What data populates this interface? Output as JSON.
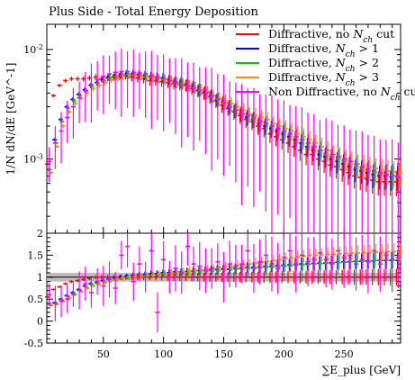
{
  "chart_data": [
    {
      "type": "scatter",
      "title": "Plus Side - Total Energy Deposition",
      "ylabel": "1/N dN/dE [GeV^-1]",
      "yscale": "log",
      "ylim": [
        0.00021,
        0.017
      ],
      "xlim": [
        3,
        297
      ],
      "ytick_labels": [
        "10^-3",
        "10^-2"
      ],
      "legend_position": "top-right",
      "grid": false,
      "x": [
        5,
        10,
        15,
        20,
        25,
        30,
        35,
        40,
        45,
        50,
        55,
        60,
        65,
        70,
        75,
        80,
        85,
        90,
        95,
        100,
        105,
        110,
        115,
        120,
        125,
        130,
        135,
        140,
        145,
        150,
        155,
        160,
        165,
        170,
        175,
        180,
        185,
        190,
        195,
        200,
        205,
        210,
        215,
        220,
        225,
        230,
        235,
        240,
        245,
        250,
        255,
        260,
        265,
        270,
        275,
        280,
        285,
        290,
        295
      ],
      "series": [
        {
          "name": "Diffractive, no N_ch cut",
          "color": "#ff0000",
          "offset": -1.5,
          "values": [
            0.0009,
            0.0038,
            0.0047,
            0.0052,
            0.0054,
            0.0054,
            0.0054,
            0.0055,
            0.0056,
            0.0054,
            0.0055,
            0.0056,
            0.0057,
            0.0058,
            0.0056,
            0.0055,
            0.0054,
            0.0052,
            0.0052,
            0.0051,
            0.005,
            0.0049,
            0.0048,
            0.0047,
            0.0044,
            0.0042,
            0.004,
            0.0037,
            0.0034,
            0.0031,
            0.0029,
            0.0027,
            0.0025,
            0.0023,
            0.0022,
            0.002,
            0.0019,
            0.0017,
            0.0016,
            0.0015,
            0.0014,
            0.0013,
            0.0012,
            0.0011,
            0.0011,
            0.001,
            0.00095,
            0.00088,
            0.00085,
            0.0008,
            0.00075,
            0.0007,
            0.00068,
            0.00066,
            0.00064,
            0.00062,
            0.00062,
            0.00062,
            0.00062
          ],
          "ratio": [
            0.55,
            0.72,
            0.78,
            0.85,
            0.9,
            0.92,
            0.95,
            0.97,
            1,
            1,
            1,
            1,
            1,
            1,
            1,
            1,
            1,
            1,
            1,
            1,
            1,
            1,
            1,
            1,
            1,
            1,
            1,
            1,
            1,
            1,
            1,
            1,
            1,
            1,
            1,
            1,
            1,
            1,
            1,
            1,
            1,
            1,
            1,
            1,
            1,
            1,
            1,
            1,
            1,
            1,
            1,
            1,
            1,
            1,
            1,
            1,
            1,
            1,
            1
          ]
        },
        {
          "name": "Diffractive, N_ch > 1",
          "color": "#0000ff",
          "offset": -0.5,
          "values": [
            0.0008,
            0.0015,
            0.0023,
            0.003,
            0.0035,
            0.0039,
            0.0043,
            0.0047,
            0.005,
            0.0053,
            0.0056,
            0.0058,
            0.0059,
            0.006,
            0.006,
            0.0059,
            0.0058,
            0.0057,
            0.0056,
            0.0055,
            0.0053,
            0.0051,
            0.005,
            0.0048,
            0.0046,
            0.0043,
            0.0041,
            0.0038,
            0.0035,
            0.0033,
            0.003,
            0.0028,
            0.0026,
            0.0024,
            0.0023,
            0.0021,
            0.002,
            0.0019,
            0.0018,
            0.0017,
            0.0016,
            0.0015,
            0.0014,
            0.0013,
            0.0012,
            0.0011,
            0.00105,
            0.001,
            0.00095,
            0.0009,
            0.00085,
            0.0008,
            0.00078,
            0.00075,
            0.00072,
            0.0007,
            0.0007,
            0.00069,
            0.00069
          ],
          "ratio": [
            0.4,
            0.42,
            0.5,
            0.58,
            0.65,
            0.72,
            0.8,
            0.85,
            0.88,
            0.92,
            0.95,
            0.98,
            1.0,
            1.02,
            1.04,
            1.05,
            1.06,
            1.08,
            1.08,
            1.1,
            1.1,
            1.12,
            1.12,
            1.13,
            1.14,
            1.15,
            1.15,
            1.16,
            1.17,
            1.18,
            1.18,
            1.2,
            1.2,
            1.22,
            1.22,
            1.23,
            1.24,
            1.25,
            1.26,
            1.27,
            1.28,
            1.29,
            1.3,
            1.3,
            1.31,
            1.32,
            1.32,
            1.33,
            1.34,
            1.35,
            1.35,
            1.36,
            1.36,
            1.37,
            1.37,
            1.38,
            1.38,
            1.38,
            1.38
          ]
        },
        {
          "name": "Diffractive, N_ch > 2",
          "color": "#00cc00",
          "offset": 0.5,
          "values": [
            0.0008,
            0.0014,
            0.0022,
            0.0029,
            0.0034,
            0.0038,
            0.0042,
            0.0046,
            0.0049,
            0.0052,
            0.0055,
            0.0057,
            0.0058,
            0.0059,
            0.0059,
            0.0058,
            0.0057,
            0.0056,
            0.0055,
            0.0054,
            0.0052,
            0.005,
            0.0049,
            0.0047,
            0.0045,
            0.0043,
            0.004,
            0.0037,
            0.0035,
            0.0032,
            0.003,
            0.0028,
            0.0026,
            0.0025,
            0.0023,
            0.0022,
            0.0021,
            0.002,
            0.0019,
            0.0018,
            0.0017,
            0.0016,
            0.0015,
            0.0014,
            0.0013,
            0.0012,
            0.0011,
            0.00105,
            0.001,
            0.00095,
            0.0009,
            0.00085,
            0.0008,
            0.00078,
            0.00075,
            0.00073,
            0.00072,
            0.00071,
            0.0007
          ],
          "ratio": [
            0.38,
            0.4,
            0.48,
            0.56,
            0.62,
            0.7,
            0.78,
            0.83,
            0.86,
            0.9,
            0.93,
            0.96,
            0.98,
            1.0,
            1.02,
            1.03,
            1.04,
            1.05,
            1.06,
            1.07,
            1.08,
            1.09,
            1.1,
            1.1,
            1.11,
            1.12,
            1.13,
            1.14,
            1.15,
            1.16,
            1.17,
            1.18,
            1.18,
            1.2,
            1.2,
            1.21,
            1.22,
            1.23,
            1.24,
            1.25,
            1.26,
            1.27,
            1.28,
            1.29,
            1.3,
            1.31,
            1.32,
            1.32,
            1.33,
            1.34,
            1.35,
            1.36,
            1.36,
            1.37,
            1.38,
            1.38,
            1.39,
            1.39,
            1.4
          ]
        },
        {
          "name": "Diffractive, N_ch > 3",
          "color": "#ff8c00",
          "offset": 1.5,
          "values": [
            0.00075,
            0.0013,
            0.002,
            0.0027,
            0.0032,
            0.0036,
            0.004,
            0.0044,
            0.0047,
            0.005,
            0.0053,
            0.0055,
            0.0057,
            0.0058,
            0.0058,
            0.0057,
            0.0056,
            0.0055,
            0.0054,
            0.0053,
            0.0052,
            0.005,
            0.0049,
            0.0047,
            0.0045,
            0.0043,
            0.0041,
            0.0038,
            0.0036,
            0.0034,
            0.0032,
            0.003,
            0.0028,
            0.0026,
            0.0025,
            0.0024,
            0.0023,
            0.0021,
            0.002,
            0.0019,
            0.0018,
            0.0017,
            0.0016,
            0.0015,
            0.0014,
            0.0013,
            0.0012,
            0.0011,
            0.00105,
            0.001,
            0.00095,
            0.0009,
            0.00088,
            0.00085,
            0.00082,
            0.0008,
            0.00078,
            0.00076,
            0.00075
          ],
          "ratio": [
            0.35,
            0.38,
            0.45,
            0.53,
            0.6,
            0.67,
            0.75,
            0.8,
            0.84,
            0.88,
            0.92,
            0.95,
            0.98,
            1.0,
            1.02,
            1.03,
            1.04,
            1.05,
            1.07,
            1.08,
            1.1,
            1.12,
            1.13,
            1.14,
            1.15,
            1.17,
            1.18,
            1.2,
            1.22,
            1.24,
            1.25,
            1.27,
            1.28,
            1.3,
            1.32,
            1.34,
            1.36,
            1.38,
            1.4,
            1.42,
            1.44,
            1.46,
            1.48,
            1.5,
            1.5,
            1.51,
            1.52,
            1.52,
            1.53,
            1.54,
            1.55,
            1.55,
            1.56,
            1.56,
            1.57,
            1.57,
            1.58,
            1.58,
            1.58
          ]
        },
        {
          "name": "Non Diffractive, no N_ch cut",
          "color": "#ff00ff",
          "offset": 0,
          "values": [
            0.00095,
            0.0014,
            0.0018,
            0.0024,
            0.003,
            0.0036,
            0.0042,
            0.0048,
            0.0053,
            0.0057,
            0.006,
            0.0062,
            0.0063,
            0.0063,
            0.0062,
            0.0061,
            0.006,
            0.0058,
            0.0056,
            0.0054,
            0.0052,
            0.005,
            0.0048,
            0.0046,
            0.0044,
            0.0042,
            0.004,
            0.0038,
            0.0035,
            0.0033,
            0.003,
            0.0028,
            0.0026,
            0.0025,
            0.0024,
            0.0022,
            0.0021,
            0.002,
            0.0019,
            0.0018,
            0.0017,
            0.0016,
            0.0015,
            0.0014,
            0.0013,
            0.0012,
            0.0012,
            0.0011,
            0.00105,
            0.001,
            0.00095,
            0.0009,
            0.00085,
            0.00082,
            0.00078,
            0.00075,
            0.00072,
            0.0007,
            0.00068
          ],
          "ratio": [
            0.6,
            0.4,
            0.45,
            0.5,
            0.6,
            0.7,
            0.85,
            0.65,
            0.9,
            0.8,
            0.95,
            0.75,
            1.5,
            1.7,
            0.9,
            1.3,
            1.0,
            1.6,
            0.2,
            1.4,
            1.0,
            1.2,
            1.1,
            1.7,
            1.3,
            1.25,
            1.15,
            1.2,
            1.35,
            1.0,
            1.3,
            1.25,
            1.3,
            1.6,
            1.2,
            1.35,
            1.5,
            1.3,
            1.2,
            1.45,
            1.6,
            1.3,
            1.5,
            1.35,
            1.4,
            1.55,
            1.4,
            1.3,
            1.6,
            1.45,
            1.5,
            1.3,
            1.4,
            1.35,
            1.6,
            1.3,
            1.5,
            1.4,
            1.45
          ]
        }
      ]
    },
    {
      "type": "scatter",
      "xlabel": "∑E_plus [GeV]",
      "ylim": [
        -0.5,
        2
      ],
      "xlim": [
        3,
        297
      ],
      "xtick_labels": [
        "50",
        "100",
        "150",
        "200",
        "250"
      ],
      "ytick_labels": [
        "-0.5",
        "0",
        "0.5",
        "1",
        "1.5",
        "2"
      ],
      "reference_band": {
        "center": 1,
        "low": 0.9,
        "high": 1.1
      }
    }
  ]
}
